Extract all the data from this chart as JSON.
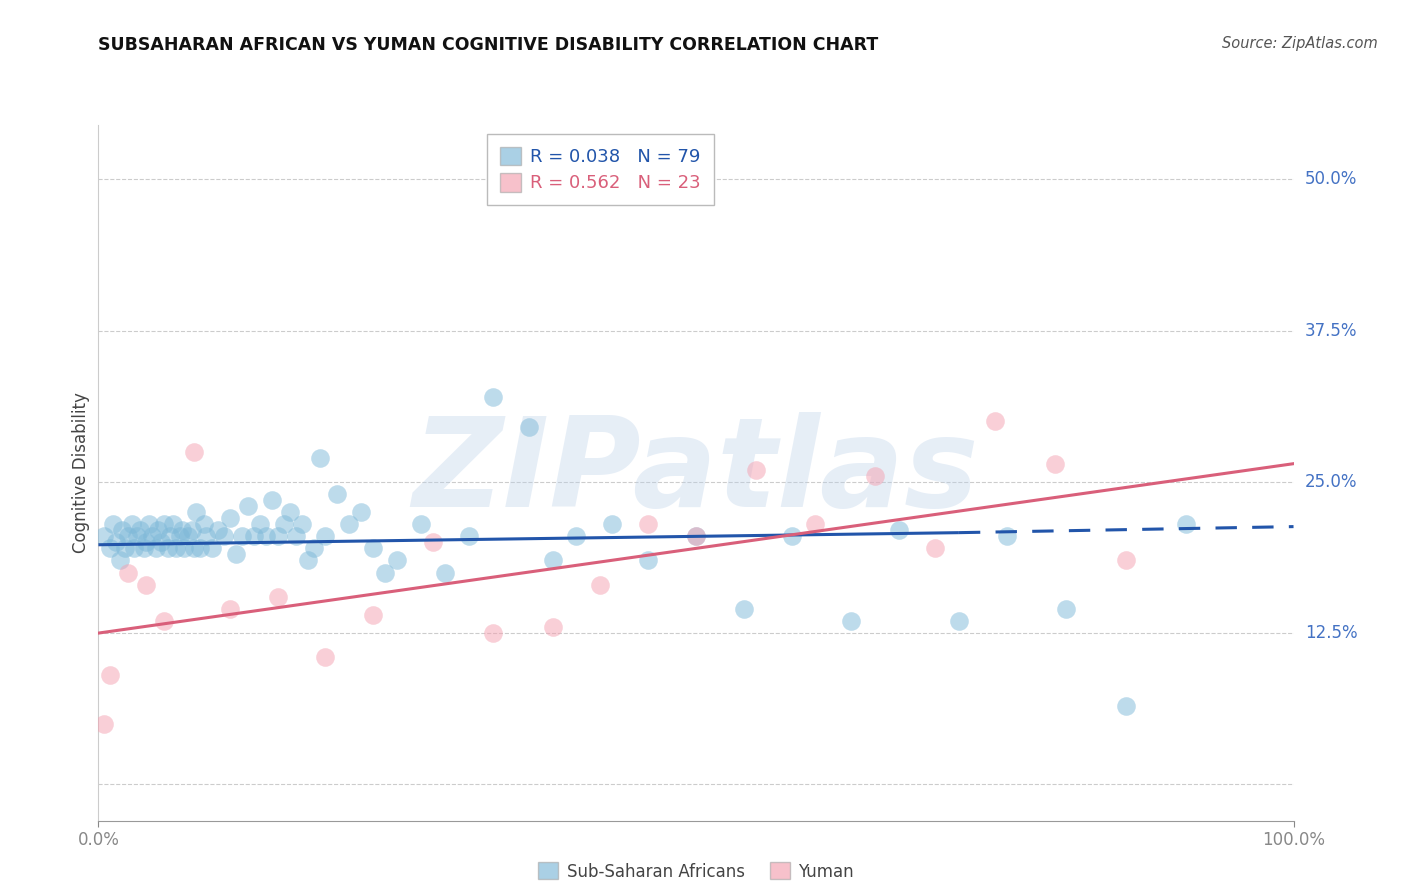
{
  "title": "SUBSAHARAN AFRICAN VS YUMAN COGNITIVE DISABILITY CORRELATION CHART",
  "source": "Source: ZipAtlas.com",
  "ylabel": "Cognitive Disability",
  "y_ticks": [
    0.0,
    0.125,
    0.25,
    0.375,
    0.5
  ],
  "y_tick_labels": [
    "",
    "12.5%",
    "25.0%",
    "37.5%",
    "50.0%"
  ],
  "x_min": 0.0,
  "x_max": 1.0,
  "y_min": -0.03,
  "y_max": 0.545,
  "legend_r1": "R = 0.038",
  "legend_n1": "N = 79",
  "legend_r2": "R = 0.562",
  "legend_n2": "N = 23",
  "blue_color": "#7db8d8",
  "pink_color": "#f4a0b0",
  "blue_line_color": "#2255aa",
  "pink_line_color": "#d95f7a",
  "watermark_text": "ZIPatlas",
  "blue_scatter_x": [
    0.005,
    0.01,
    0.012,
    0.015,
    0.018,
    0.02,
    0.022,
    0.025,
    0.028,
    0.03,
    0.032,
    0.035,
    0.038,
    0.04,
    0.042,
    0.045,
    0.048,
    0.05,
    0.052,
    0.055,
    0.058,
    0.06,
    0.062,
    0.065,
    0.068,
    0.07,
    0.072,
    0.075,
    0.078,
    0.08,
    0.082,
    0.085,
    0.088,
    0.09,
    0.095,
    0.1,
    0.105,
    0.11,
    0.115,
    0.12,
    0.125,
    0.13,
    0.135,
    0.14,
    0.145,
    0.15,
    0.155,
    0.16,
    0.165,
    0.17,
    0.175,
    0.18,
    0.185,
    0.19,
    0.2,
    0.21,
    0.22,
    0.23,
    0.24,
    0.25,
    0.27,
    0.29,
    0.31,
    0.33,
    0.36,
    0.38,
    0.4,
    0.43,
    0.46,
    0.5,
    0.54,
    0.58,
    0.63,
    0.67,
    0.72,
    0.76,
    0.81,
    0.86,
    0.91
  ],
  "blue_scatter_y": [
    0.205,
    0.195,
    0.215,
    0.2,
    0.185,
    0.21,
    0.195,
    0.205,
    0.215,
    0.195,
    0.205,
    0.21,
    0.195,
    0.2,
    0.215,
    0.205,
    0.195,
    0.21,
    0.2,
    0.215,
    0.195,
    0.205,
    0.215,
    0.195,
    0.205,
    0.21,
    0.195,
    0.205,
    0.21,
    0.195,
    0.225,
    0.195,
    0.215,
    0.205,
    0.195,
    0.21,
    0.205,
    0.22,
    0.19,
    0.205,
    0.23,
    0.205,
    0.215,
    0.205,
    0.235,
    0.205,
    0.215,
    0.225,
    0.205,
    0.215,
    0.185,
    0.195,
    0.27,
    0.205,
    0.24,
    0.215,
    0.225,
    0.195,
    0.175,
    0.185,
    0.215,
    0.175,
    0.205,
    0.32,
    0.295,
    0.185,
    0.205,
    0.215,
    0.185,
    0.205,
    0.145,
    0.205,
    0.135,
    0.21,
    0.135,
    0.205,
    0.145,
    0.065,
    0.215
  ],
  "pink_scatter_x": [
    0.005,
    0.01,
    0.025,
    0.04,
    0.055,
    0.08,
    0.11,
    0.15,
    0.19,
    0.23,
    0.28,
    0.33,
    0.38,
    0.42,
    0.46,
    0.5,
    0.55,
    0.6,
    0.65,
    0.7,
    0.75,
    0.8,
    0.86
  ],
  "pink_scatter_y": [
    0.05,
    0.09,
    0.175,
    0.165,
    0.135,
    0.275,
    0.145,
    0.155,
    0.105,
    0.14,
    0.2,
    0.125,
    0.13,
    0.165,
    0.215,
    0.205,
    0.26,
    0.215,
    0.255,
    0.195,
    0.3,
    0.265,
    0.185
  ],
  "blue_line_x_start": 0.0,
  "blue_line_x_end_solid": 0.72,
  "blue_line_x_end_dashed": 1.0,
  "blue_line_y_start": 0.198,
  "blue_line_y_end_solid": 0.208,
  "blue_line_y_end_dashed": 0.213,
  "pink_line_x_start": 0.0,
  "pink_line_x_end": 1.0,
  "pink_line_y_start": 0.125,
  "pink_line_y_end": 0.265
}
